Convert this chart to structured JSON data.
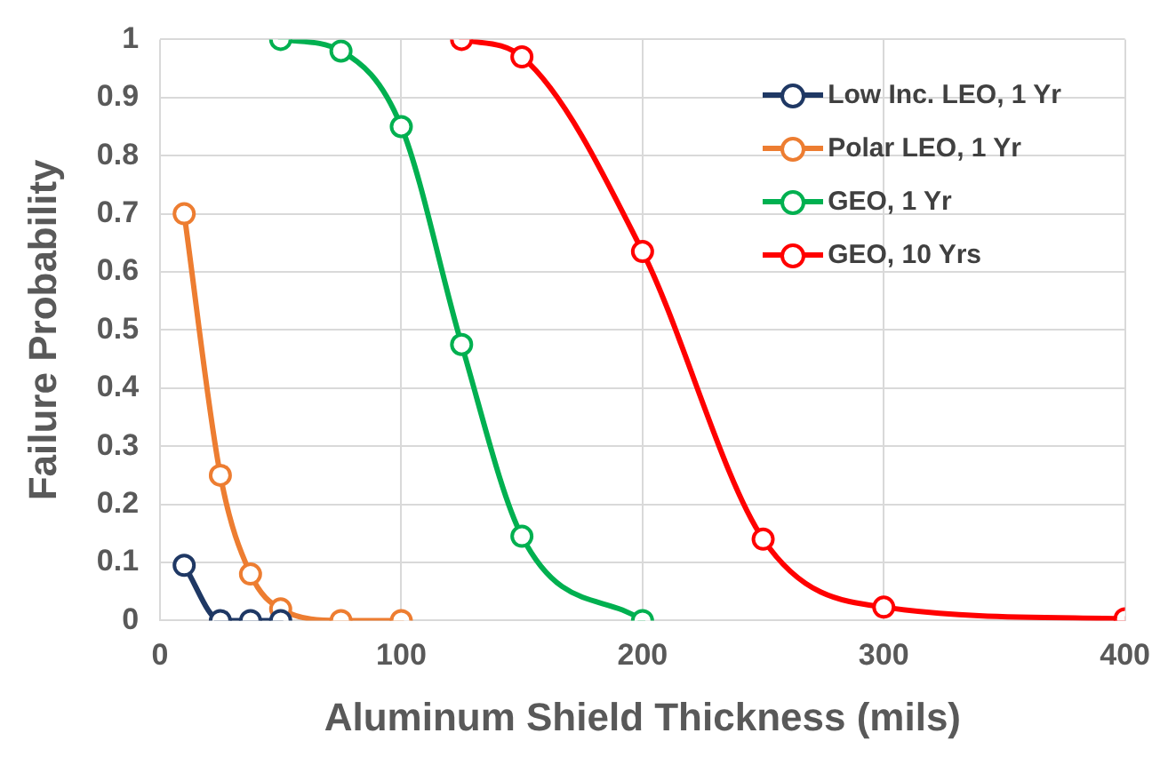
{
  "chart_data": {
    "type": "line",
    "xlabel": "Aluminum Shield Thickness (mils)",
    "ylabel": "Failure Probability",
    "xlim": [
      0,
      400
    ],
    "xticks": [
      0,
      100,
      200,
      300,
      400
    ],
    "ylim": [
      0,
      1
    ],
    "yticks": [
      0,
      0.1,
      0.2,
      0.3,
      0.4,
      0.5,
      0.6,
      0.7,
      0.8,
      0.9,
      1
    ],
    "grid": true,
    "legend": "top right",
    "marker": "circle",
    "line_style": "solid",
    "series": [
      {
        "name": "Low Inc. LEO, 1 Yr",
        "color": "#1f3864",
        "x": [
          10,
          25,
          37.5,
          50
        ],
        "values": [
          0.095,
          0,
          0,
          0
        ]
      },
      {
        "name": "Polar LEO, 1 Yr",
        "color": "#ed7d31",
        "x": [
          10,
          25,
          37.5,
          50,
          75,
          100
        ],
        "values": [
          0.7,
          0.25,
          0.08,
          0.02,
          0,
          0
        ]
      },
      {
        "name": "GEO, 1 Yr",
        "color": "#00b050",
        "x": [
          50,
          75,
          100,
          125,
          150,
          200
        ],
        "values": [
          1,
          0.98,
          0.85,
          0.475,
          0.145,
          0
        ]
      },
      {
        "name": "GEO, 10 Yrs",
        "color": "#ff0000",
        "x": [
          125,
          150,
          200,
          250,
          300,
          400
        ],
        "values": [
          1,
          0.97,
          0.635,
          0.14,
          0.023,
          0.003
        ]
      }
    ]
  }
}
